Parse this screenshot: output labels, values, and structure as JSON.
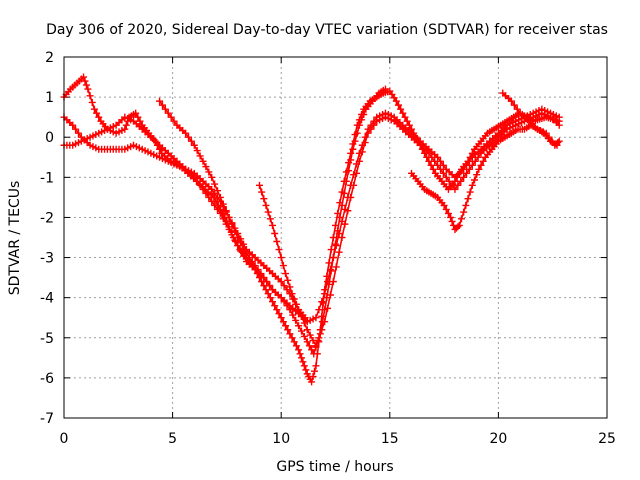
{
  "chart_data": {
    "type": "scatter",
    "title": "Day 306 of 2020, Sidereal Day-to-day VTEC variation (SDTVAR) for receiver stas",
    "xlabel": "GPS time / hours",
    "ylabel": "SDTVAR / TECUs",
    "xlim": [
      0,
      25
    ],
    "ylim": [
      -7,
      2
    ],
    "xticks": [
      0,
      5,
      10,
      15,
      20,
      25
    ],
    "yticks": [
      -7,
      -6,
      -5,
      -4,
      -3,
      -2,
      -1,
      0,
      1,
      2
    ],
    "grid": true,
    "legend": "none",
    "marker": "plus",
    "color": "#ff0000",
    "series": [
      {
        "x": [
          0.0,
          0.3,
          0.6,
          0.9,
          1.1,
          1.4,
          1.7,
          2.0,
          2.4,
          2.8,
          3.0,
          3.3,
          3.6,
          3.9,
          4.2,
          4.5,
          4.9,
          5.3,
          5.7,
          6.1,
          6.5,
          6.9,
          7.2,
          7.5,
          7.8,
          8.1,
          8.4,
          8.7,
          9.0,
          9.3,
          9.6,
          9.9,
          10.2,
          10.5,
          10.8,
          11.0,
          11.2,
          11.4,
          11.6,
          11.8,
          12.0,
          12.3,
          12.6,
          12.9,
          13.2,
          13.5,
          13.8,
          14.1,
          14.4,
          14.7,
          15.0,
          15.3,
          15.6,
          15.9,
          16.2,
          16.5,
          16.8,
          17.1,
          17.4,
          17.7,
          18.0,
          18.3,
          18.6,
          18.9,
          19.2,
          19.5,
          19.8,
          20.1,
          20.4,
          20.7,
          21.0,
          21.3,
          21.6,
          21.9,
          22.2,
          22.5,
          22.8
        ],
        "y": [
          1.0,
          1.2,
          1.35,
          1.5,
          1.2,
          0.7,
          0.4,
          0.2,
          0.1,
          0.2,
          0.5,
          0.6,
          0.3,
          0.1,
          -0.1,
          -0.4,
          -0.6,
          -0.7,
          -0.9,
          -1.1,
          -1.3,
          -1.5,
          -1.8,
          -2.1,
          -2.5,
          -2.8,
          -3.0,
          -3.2,
          -3.5,
          -3.8,
          -4.1,
          -4.4,
          -4.7,
          -5.0,
          -5.3,
          -5.6,
          -5.9,
          -6.1,
          -5.7,
          -4.8,
          -3.8,
          -2.8,
          -1.9,
          -1.1,
          -0.4,
          0.3,
          0.7,
          0.9,
          1.0,
          1.1,
          1.15,
          0.9,
          0.6,
          0.3,
          0.0,
          -0.3,
          -0.6,
          -0.9,
          -1.1,
          -1.3,
          -1.1,
          -0.8,
          -0.6,
          -0.3,
          -0.1,
          0.1,
          0.2,
          0.3,
          0.4,
          0.5,
          0.6,
          0.5,
          0.4,
          0.45,
          0.5,
          0.45,
          0.4
        ]
      },
      {
        "x": [
          0.0,
          0.4,
          0.8,
          1.2,
          1.6,
          2.0,
          2.4,
          2.8,
          3.2,
          3.6,
          4.0,
          4.4,
          4.8,
          5.2,
          5.6,
          6.0,
          6.4,
          6.8,
          7.2,
          7.6,
          8.0,
          8.4,
          8.8,
          9.2,
          9.6,
          10.0,
          10.4,
          10.8,
          11.2,
          11.6,
          12.0,
          12.4,
          12.8,
          13.2,
          13.6,
          14.0,
          14.4,
          14.8,
          15.2,
          15.6,
          16.0,
          16.4,
          16.8,
          17.2,
          17.6,
          18.0,
          18.4,
          18.8,
          19.2,
          19.6,
          20.0,
          20.4,
          20.8,
          21.2,
          21.6,
          22.0,
          22.4,
          22.8
        ],
        "y": [
          0.5,
          0.3,
          0.0,
          -0.2,
          -0.3,
          -0.3,
          -0.3,
          -0.3,
          -0.2,
          -0.3,
          -0.4,
          -0.5,
          -0.6,
          -0.7,
          -0.8,
          -0.9,
          -1.1,
          -1.3,
          -1.6,
          -2.0,
          -2.4,
          -2.8,
          -3.0,
          -3.2,
          -3.4,
          -3.6,
          -3.9,
          -4.3,
          -4.8,
          -5.2,
          -4.6,
          -3.6,
          -2.5,
          -1.5,
          -0.6,
          0.1,
          0.4,
          0.5,
          0.4,
          0.2,
          0.0,
          -0.2,
          -0.4,
          -0.7,
          -1.0,
          -1.3,
          -1.0,
          -0.7,
          -0.4,
          -0.2,
          0.0,
          0.2,
          0.3,
          0.4,
          0.5,
          0.6,
          0.5,
          0.3
        ]
      },
      {
        "x": [
          0.0,
          0.4,
          0.8,
          1.2,
          1.6,
          2.0,
          2.4,
          2.8,
          3.2,
          3.6,
          4.0,
          4.4,
          4.8,
          5.2,
          5.6,
          6.0,
          6.4,
          6.8,
          7.2,
          7.6,
          8.0,
          8.4,
          8.8,
          9.2,
          9.6,
          10.0,
          10.4,
          10.8,
          11.2,
          11.6,
          12.0,
          12.4,
          12.8,
          13.2,
          13.6,
          14.0,
          14.4,
          14.8,
          15.2,
          15.6,
          16.0,
          16.4,
          16.8,
          17.2,
          17.6,
          18.0,
          18.4,
          18.8,
          19.2,
          19.6,
          20.0,
          20.4,
          20.8,
          21.2,
          21.6,
          22.0,
          22.4,
          22.8
        ],
        "y": [
          -0.2,
          -0.2,
          -0.1,
          0.0,
          0.1,
          0.2,
          0.3,
          0.5,
          0.4,
          0.2,
          0.0,
          -0.2,
          -0.4,
          -0.6,
          -0.8,
          -1.0,
          -1.3,
          -1.6,
          -1.9,
          -2.3,
          -2.7,
          -3.1,
          -3.3,
          -3.5,
          -3.8,
          -4.0,
          -4.2,
          -4.4,
          -4.6,
          -4.5,
          -3.9,
          -3.0,
          -2.1,
          -1.2,
          -0.4,
          0.2,
          0.5,
          0.6,
          0.5,
          0.3,
          0.1,
          -0.1,
          -0.3,
          -0.5,
          -0.8,
          -1.0,
          -0.8,
          -0.5,
          -0.3,
          -0.1,
          0.1,
          0.3,
          0.4,
          0.5,
          0.6,
          0.7,
          0.6,
          0.5
        ]
      },
      {
        "x": [
          4.4,
          4.8,
          5.2,
          5.6,
          6.0,
          6.4,
          6.8,
          7.2,
          7.6,
          8.0,
          8.4,
          8.8,
          9.2,
          9.6,
          10.0,
          10.4,
          10.8,
          11.2,
          11.5,
          11.8,
          12.1,
          12.4,
          12.7,
          13.0,
          13.3,
          13.6,
          13.9,
          14.2,
          14.5,
          14.8
        ],
        "y": [
          0.9,
          0.6,
          0.3,
          0.1,
          -0.2,
          -0.6,
          -1.0,
          -1.5,
          -2.0,
          -2.5,
          -2.9,
          -3.2,
          -3.5,
          -3.8,
          -4.0,
          -4.3,
          -4.7,
          -5.1,
          -5.4,
          -4.9,
          -4.0,
          -3.0,
          -2.0,
          -1.1,
          -0.3,
          0.3,
          0.7,
          0.9,
          1.1,
          1.2
        ]
      },
      {
        "x": [
          9.0,
          9.3,
          9.6,
          9.9,
          10.2,
          10.5,
          10.8,
          11.1
        ],
        "y": [
          -1.2,
          -1.7,
          -2.2,
          -2.8,
          -3.4,
          -3.9,
          -4.3,
          -4.5
        ]
      },
      {
        "x": [
          16.0,
          16.3,
          16.6,
          16.9,
          17.2,
          17.5,
          17.8,
          18.0,
          18.2,
          18.5,
          18.8,
          19.1,
          19.4,
          19.7,
          20.0,
          20.3,
          20.6,
          20.9,
          21.2,
          21.5,
          21.8,
          22.1,
          22.4,
          22.7
        ],
        "y": [
          -0.9,
          -1.1,
          -1.3,
          -1.4,
          -1.5,
          -1.7,
          -2.0,
          -2.3,
          -2.2,
          -1.7,
          -1.2,
          -0.8,
          -0.5,
          -0.3,
          -0.1,
          0.0,
          0.1,
          0.2,
          0.2,
          0.3,
          0.2,
          0.1,
          -0.1,
          -0.2
        ]
      },
      {
        "x": [
          20.2,
          20.6,
          21.0,
          21.4,
          21.8,
          22.2,
          22.6,
          22.8
        ],
        "y": [
          1.1,
          0.9,
          0.6,
          0.4,
          0.2,
          0.1,
          -0.2,
          -0.1
        ]
      }
    ]
  }
}
